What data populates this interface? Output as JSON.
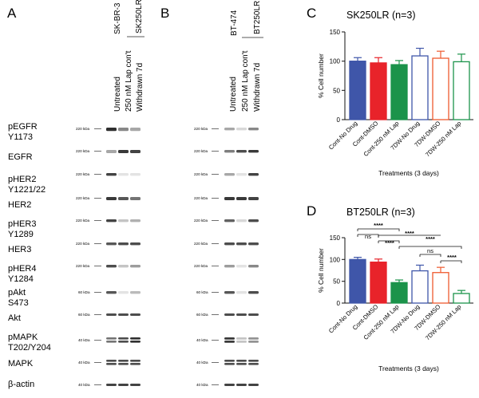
{
  "panel_labels": {
    "a": "A",
    "b": "B",
    "c": "C",
    "d": "D"
  },
  "proteins": [
    "pEGFR",
    "Y1173",
    "EGFR",
    "pHER2",
    "Y1221/22",
    "HER2",
    "pHER3",
    "Y1289",
    "HER3",
    "pHER4",
    "Y1284",
    "pAkt",
    "S473",
    "Akt",
    "pMAPK",
    "T202/Y204",
    "MAPK",
    "β-actin"
  ],
  "kda": {
    "k220": "220 kDa",
    "k60": "60 kDa",
    "k40": "40 kDa"
  },
  "blot_a": {
    "cell_line": "SK-BR-3",
    "resistant_line": "SK250LR",
    "lanes": [
      "Untreated",
      "250 nM Lap con't",
      "Withdrawn 7d"
    ]
  },
  "blot_b": {
    "cell_line": "BT-474",
    "resistant_line": "BT250LR",
    "lanes": [
      "Untreated",
      "250 nM Lap con't",
      "Withdrawn 7d"
    ]
  },
  "chart_data": [
    {
      "type": "bar",
      "title": "SK250LR (n=3)",
      "xlabel": "Treatments (3 days)",
      "ylabel": "% Cell number",
      "ylim": [
        0,
        150
      ],
      "yticks": [
        "0",
        "50",
        "100",
        "150"
      ],
      "categories": [
        "Cont-No Drug",
        "Cont-DMSO",
        "Cont-250 nM Lap",
        "7DW-No Drug",
        "7DW-DMSO",
        "7DW-250 nM Lap"
      ],
      "values": [
        100,
        97,
        94,
        109,
        105,
        99
      ],
      "errors": [
        6,
        9,
        7,
        13,
        12,
        13
      ],
      "colors": [
        "#3f56a9",
        "#e8232a",
        "#1b934a",
        "#3f56a9",
        "#ef5a2f",
        "#1b934a"
      ],
      "filled": [
        true,
        true,
        true,
        false,
        false,
        false
      ]
    },
    {
      "type": "bar",
      "title": "BT250LR (n=3)",
      "xlabel": "Treatments (3 days)",
      "ylabel": "% Cell number",
      "ylim": [
        0,
        150
      ],
      "yticks": [
        "0",
        "50",
        "100",
        "150"
      ],
      "categories": [
        "Cont-No Drug",
        "Cont-DMSO",
        "Cont-250 nM Lap",
        "7DW-No Drug",
        "7DW-DMSO",
        "7DW-250 nM Lap"
      ],
      "values": [
        100,
        94,
        47,
        74,
        70,
        22
      ],
      "errors": [
        5,
        7,
        6,
        13,
        12,
        7
      ],
      "colors": [
        "#3f56a9",
        "#e8232a",
        "#1b934a",
        "#3f56a9",
        "#ef5a2f",
        "#1b934a"
      ],
      "filled": [
        true,
        true,
        true,
        false,
        false,
        false
      ],
      "annotations": [
        "****",
        "****",
        "****",
        "****",
        "****",
        "ns",
        "ns"
      ]
    }
  ]
}
